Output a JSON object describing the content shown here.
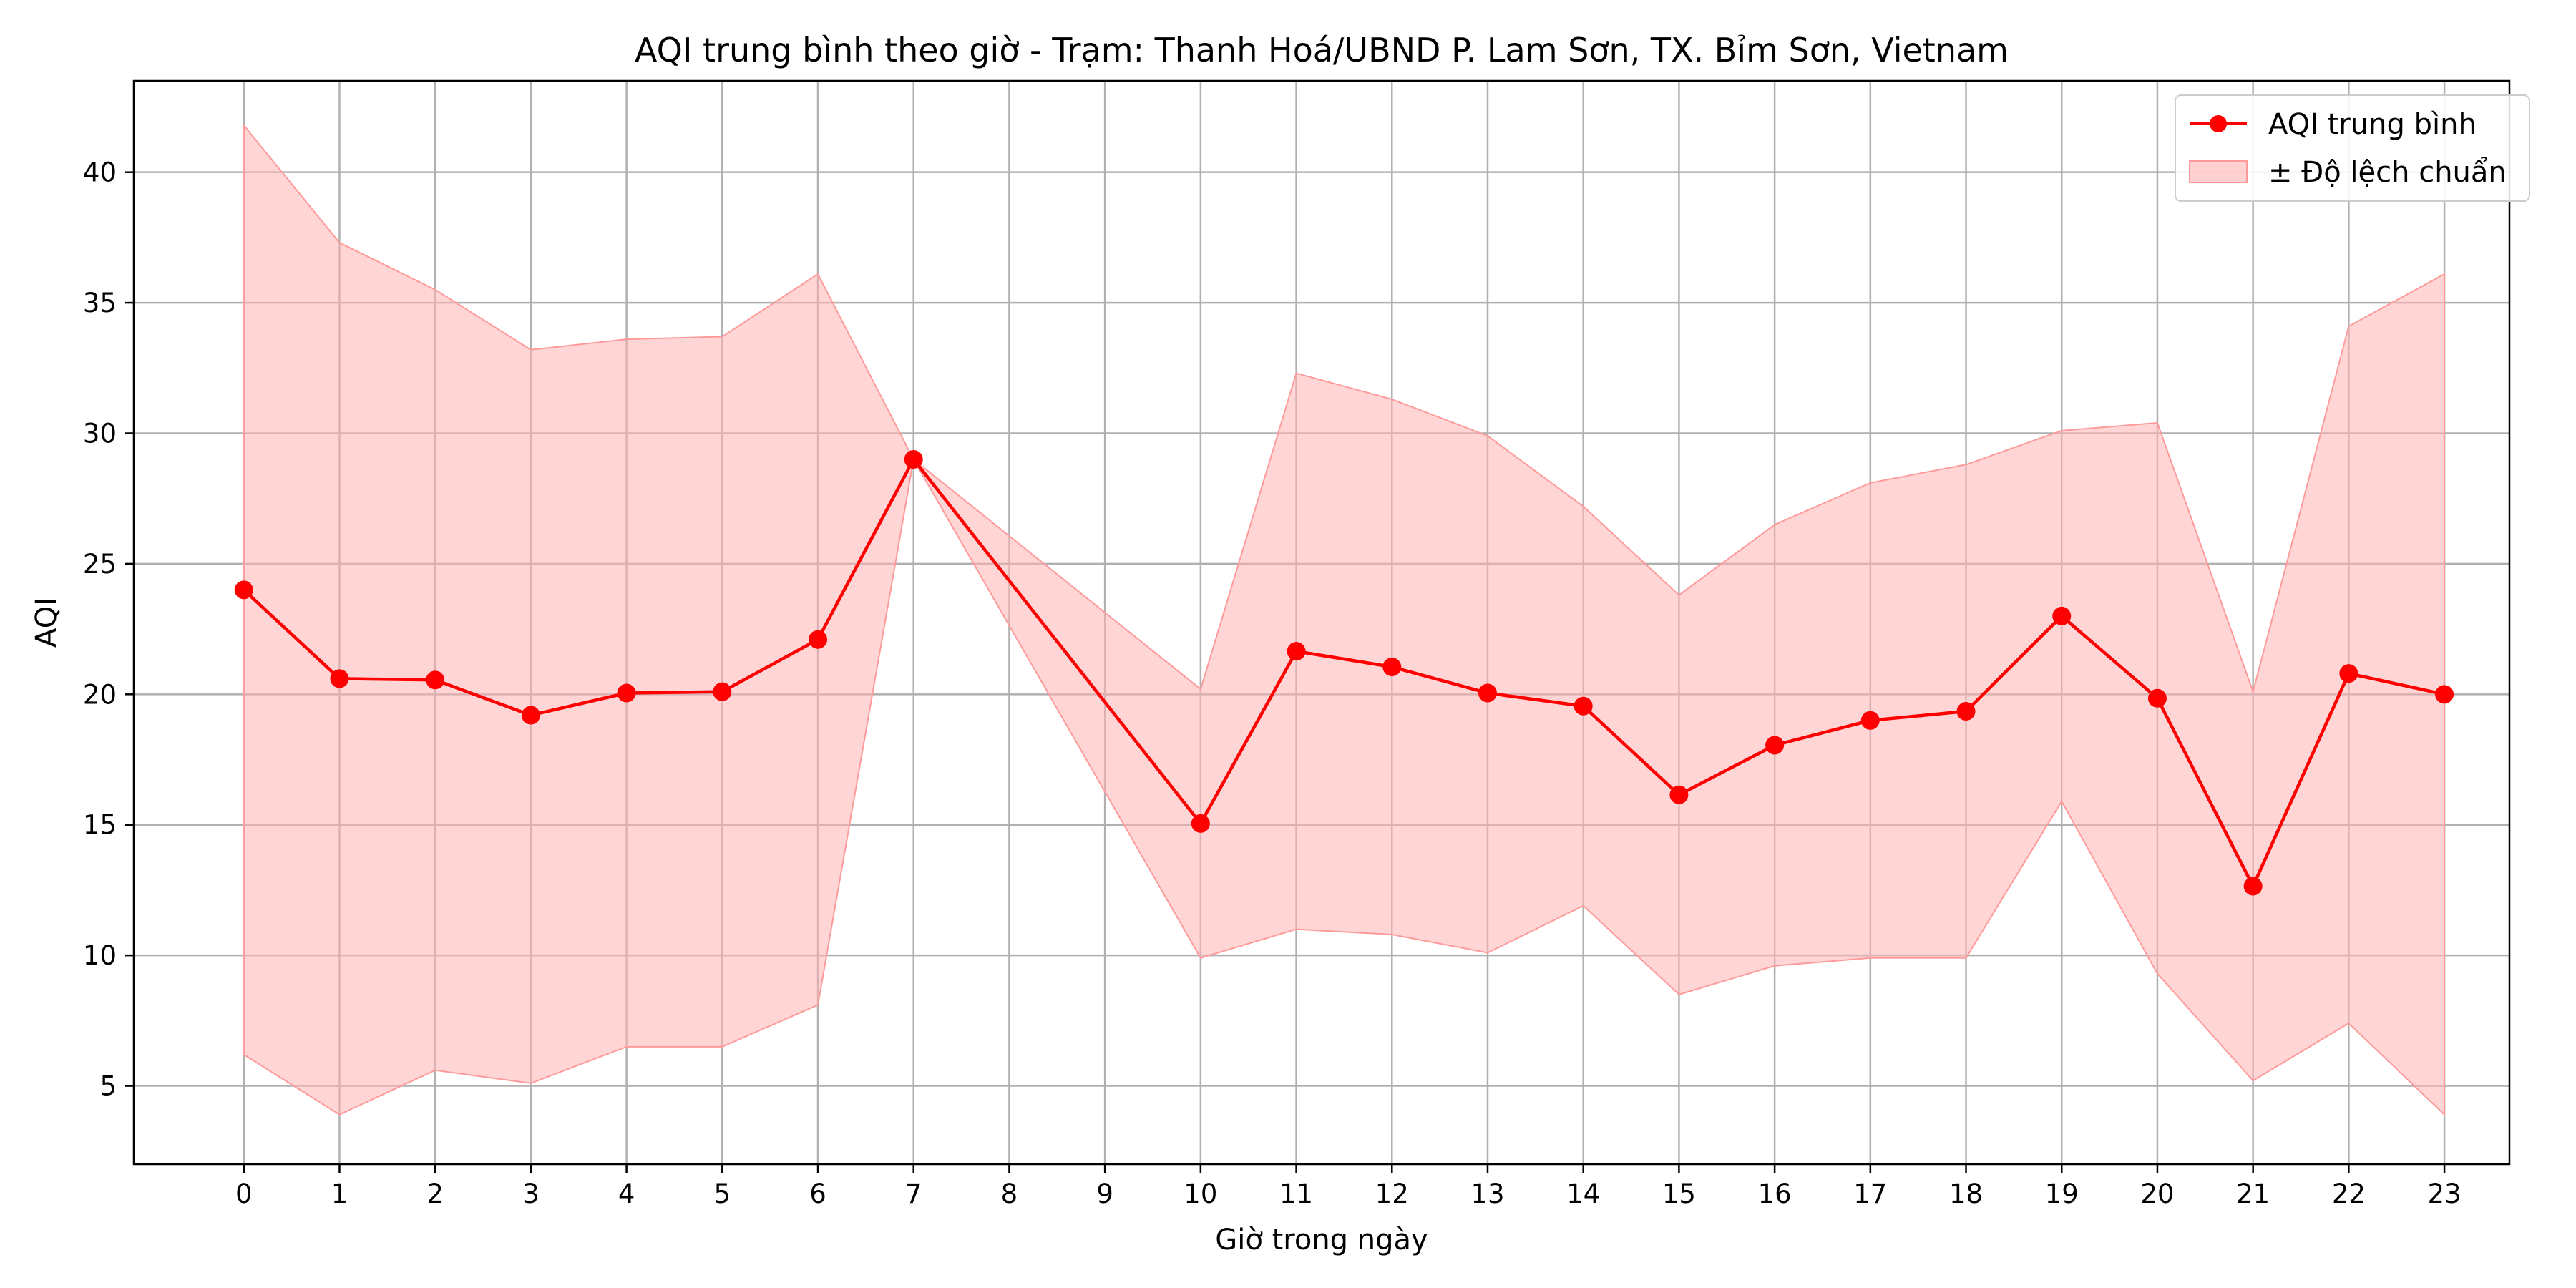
{
  "chart_data": {
    "type": "line",
    "title": "AQI trung bình theo giờ - Trạm: Thanh Hoá/UBND P. Lam Sơn, TX. Bỉm Sơn, Vietnam",
    "xlabel": "Giờ trong ngày",
    "ylabel": "AQI",
    "categories": [
      "0",
      "1",
      "2",
      "3",
      "4",
      "5",
      "6",
      "7",
      "8",
      "9",
      "10",
      "11",
      "12",
      "13",
      "14",
      "15",
      "16",
      "17",
      "18",
      "19",
      "20",
      "21",
      "22",
      "23"
    ],
    "x": [
      0,
      1,
      2,
      3,
      4,
      5,
      6,
      7,
      10,
      11,
      12,
      13,
      14,
      15,
      16,
      17,
      18,
      19,
      20,
      21,
      22,
      23
    ],
    "ylim": [
      2,
      43.5
    ],
    "xlim": [
      -1.15,
      23.68
    ],
    "yticks": [
      5,
      10,
      15,
      20,
      25,
      30,
      35,
      40
    ],
    "grid": true,
    "legend_position": "top-right",
    "series": [
      {
        "name": "AQI trung bình",
        "color": "#ff0000",
        "marker": "circle",
        "values": [
          24.0,
          20.6,
          20.55,
          19.2,
          20.05,
          20.1,
          22.1,
          29.0,
          15.05,
          21.65,
          21.05,
          20.05,
          19.55,
          16.15,
          18.05,
          19.0,
          19.35,
          23.0,
          19.85,
          12.65,
          20.8,
          20.0
        ]
      },
      {
        "name": "± Độ lệch chuẩn",
        "type": "band",
        "color": "#ffb3b3",
        "lower": [
          6.2,
          3.9,
          5.6,
          5.1,
          6.5,
          6.5,
          8.1,
          29.0,
          9.9,
          11.0,
          10.8,
          10.1,
          11.9,
          8.5,
          9.6,
          9.9,
          9.9,
          15.9,
          9.3,
          5.2,
          7.4,
          3.9
        ],
        "upper": [
          41.8,
          37.3,
          35.5,
          33.2,
          33.6,
          33.7,
          36.1,
          29.0,
          20.2,
          32.3,
          31.3,
          29.9,
          27.2,
          23.8,
          26.5,
          28.1,
          28.8,
          30.1,
          30.4,
          20.1,
          34.1,
          36.1
        ]
      }
    ]
  }
}
